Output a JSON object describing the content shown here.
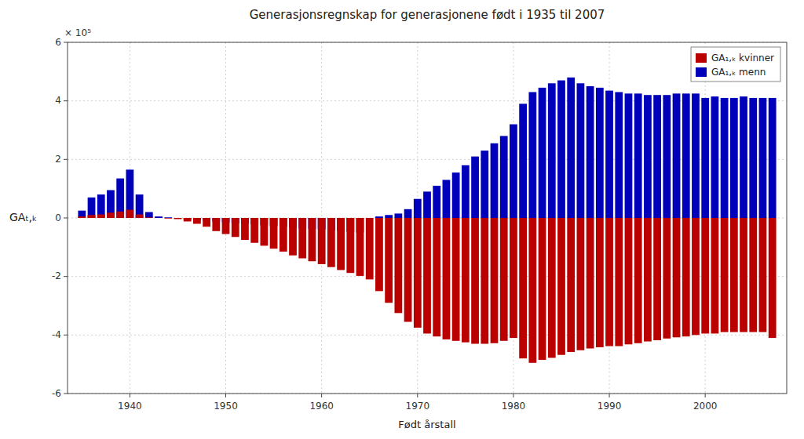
{
  "chart_data": {
    "type": "bar",
    "title": "Generasjonsregnskap for generasjonene født i 1935 til 2007",
    "xlabel": "Født årstall",
    "ylabel": "GAₜ,ₖ",
    "annotations": [
      "× 10⁵"
    ],
    "x": [
      1935,
      1936,
      1937,
      1938,
      1939,
      1940,
      1941,
      1942,
      1943,
      1944,
      1945,
      1946,
      1947,
      1948,
      1949,
      1950,
      1951,
      1952,
      1953,
      1954,
      1955,
      1956,
      1957,
      1958,
      1959,
      1960,
      1961,
      1962,
      1963,
      1964,
      1965,
      1966,
      1967,
      1968,
      1969,
      1970,
      1971,
      1972,
      1973,
      1974,
      1975,
      1976,
      1977,
      1978,
      1979,
      1980,
      1981,
      1982,
      1983,
      1984,
      1985,
      1986,
      1987,
      1988,
      1989,
      1990,
      1991,
      1992,
      1993,
      1994,
      1995,
      1996,
      1997,
      1998,
      1999,
      2000,
      2001,
      2002,
      2003,
      2004,
      2005,
      2006,
      2007
    ],
    "series": [
      {
        "name": "GA₁,ₖ menn",
        "color": "#0000BB",
        "values": [
          0.25,
          0.7,
          0.8,
          0.95,
          1.35,
          1.65,
          0.8,
          0.2,
          0.05,
          0.02,
          0.0,
          -0.05,
          -0.08,
          -0.1,
          -0.12,
          -0.15,
          -0.18,
          -0.2,
          -0.22,
          -0.25,
          -0.28,
          -0.3,
          -0.33,
          -0.36,
          -0.38,
          -0.4,
          -0.42,
          -0.45,
          -0.47,
          -0.5,
          0.0,
          0.05,
          0.1,
          0.15,
          0.3,
          0.65,
          0.9,
          1.1,
          1.3,
          1.55,
          1.8,
          2.1,
          2.3,
          2.55,
          2.8,
          3.2,
          3.9,
          4.3,
          4.45,
          4.6,
          4.7,
          4.8,
          4.6,
          4.5,
          4.45,
          4.35,
          4.3,
          4.25,
          4.25,
          4.2,
          4.2,
          4.2,
          4.25,
          4.25,
          4.25,
          4.1,
          4.15,
          4.1,
          4.1,
          4.15,
          4.1,
          4.1,
          4.1
        ]
      },
      {
        "name": "GA₁,ₖ kvinner",
        "color": "#BB0000",
        "values": [
          0.05,
          0.1,
          0.12,
          0.18,
          0.22,
          0.28,
          0.12,
          0.02,
          0.0,
          -0.02,
          -0.04,
          -0.12,
          -0.2,
          -0.3,
          -0.45,
          -0.55,
          -0.65,
          -0.75,
          -0.85,
          -0.95,
          -1.05,
          -1.15,
          -1.28,
          -1.38,
          -1.48,
          -1.58,
          -1.68,
          -1.78,
          -1.88,
          -1.98,
          -2.1,
          -2.5,
          -2.9,
          -3.25,
          -3.55,
          -3.75,
          -3.95,
          -4.05,
          -4.15,
          -4.2,
          -4.25,
          -4.3,
          -4.3,
          -4.28,
          -4.2,
          -4.1,
          -4.8,
          -4.95,
          -4.85,
          -4.78,
          -4.68,
          -4.58,
          -4.52,
          -4.46,
          -4.42,
          -4.38,
          -4.38,
          -4.32,
          -4.28,
          -4.22,
          -4.18,
          -4.12,
          -4.08,
          -4.05,
          -4.0,
          -3.95,
          -3.95,
          -3.9,
          -3.9,
          -3.9,
          -3.9,
          -3.9,
          -4.1
        ]
      }
    ],
    "xlim": [
      1933.5,
      2008.5
    ],
    "ylim": [
      -6,
      6
    ],
    "xticks": [
      1940,
      1950,
      1960,
      1970,
      1980,
      1990,
      2000
    ],
    "yticks": [
      -6,
      -4,
      -2,
      0,
      2,
      4,
      6
    ],
    "grid": true,
    "legend": "upper right"
  }
}
